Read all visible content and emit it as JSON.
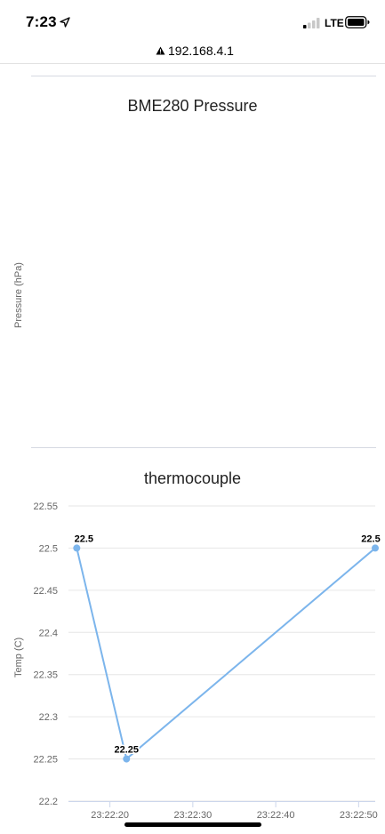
{
  "status_bar": {
    "time": "7:23",
    "network": "LTE",
    "icons": [
      "location-arrow-icon",
      "signal-bars-icon",
      "battery-icon"
    ]
  },
  "url_bar": {
    "url": "192.168.4.1",
    "security_icon": "warning-icon"
  },
  "pressure_chart": {
    "title": "BME280 Pressure",
    "ylabel": "Pressure (hPa)"
  },
  "chart_data": [
    {
      "type": "line",
      "title": "BME280 Pressure",
      "xlabel": "",
      "ylabel": "Pressure (hPa)",
      "series": []
    },
    {
      "type": "line",
      "title": "thermocouple",
      "xlabel": "",
      "ylabel": "Temp (C)",
      "ylim": [
        22.2,
        22.55
      ],
      "yticks": [
        "22.55",
        "22.5",
        "22.45",
        "22.4",
        "22.35",
        "22.3",
        "22.25",
        "22.2"
      ],
      "xticks": [
        "23:22:20",
        "23:22:30",
        "23:22:40",
        "23:22:50"
      ],
      "xlim": [
        "23:22:15",
        "23:22:52"
      ],
      "grid": true,
      "color": "#7cb5ec",
      "series": [
        {
          "x": [
            "23:22:16",
            "23:22:22",
            "23:22:52"
          ],
          "values": [
            22.5,
            22.25,
            22.5
          ],
          "labels": [
            "22.5",
            "22.25",
            "22.5"
          ]
        }
      ]
    }
  ]
}
